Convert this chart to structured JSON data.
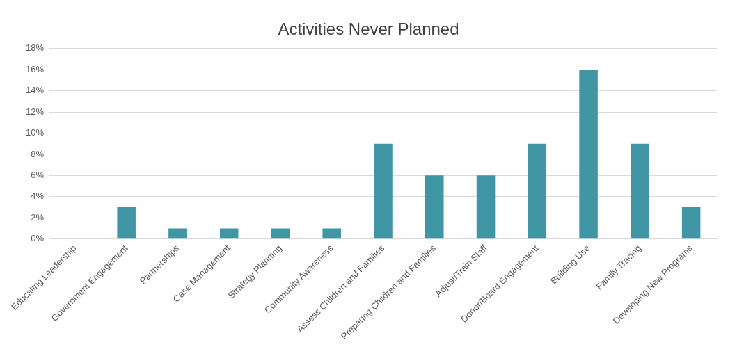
{
  "chart_data": {
    "type": "bar",
    "title": "Activities Never Planned",
    "categories": [
      "Educating Leadership",
      "Government Engagement",
      "Partnerships",
      "Case Management",
      "Strategy Planning",
      "Community Awareness",
      "Assess Children and Families",
      "Preparing Children and Families",
      "Adjust/Train Staff",
      "Donor/Board Engagement",
      "Building Use",
      "Family Tracing",
      "Developing New Programs"
    ],
    "values": [
      0,
      3,
      1,
      1,
      1,
      1,
      9,
      6,
      6,
      9,
      16,
      9,
      3
    ],
    "color": "#4096a4",
    "ylim": [
      0,
      18
    ],
    "yticks": [
      {
        "value": 0,
        "label": "0%"
      },
      {
        "value": 2,
        "label": "2%"
      },
      {
        "value": 4,
        "label": "4%"
      },
      {
        "value": 6,
        "label": "6%"
      },
      {
        "value": 8,
        "label": "8%"
      },
      {
        "value": 10,
        "label": "10%"
      },
      {
        "value": 12,
        "label": "12%"
      },
      {
        "value": 14,
        "label": "14%"
      },
      {
        "value": 16,
        "label": "16%"
      },
      {
        "value": 18,
        "label": "18%"
      }
    ],
    "grid": "y"
  }
}
